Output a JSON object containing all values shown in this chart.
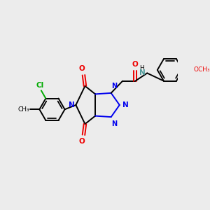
{
  "bg_color": "#ececec",
  "bond_color": "#000000",
  "n_color": "#0000ee",
  "o_color": "#ee0000",
  "cl_color": "#00aa00",
  "nh_color": "#4d9999",
  "lw": 1.4,
  "figsize": [
    3.0,
    3.0
  ],
  "dpi": 100,
  "xlim": [
    0,
    10
  ],
  "ylim": [
    0,
    10
  ]
}
